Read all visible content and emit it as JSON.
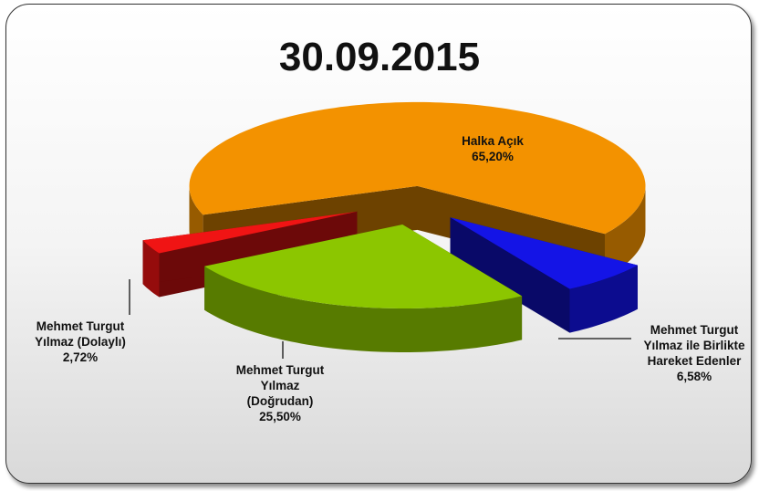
{
  "chart_data": {
    "type": "pie",
    "title": "30.09.2015",
    "categories": [
      "Halka Açık",
      "Mehmet Turgut Yılmaz ile Birlikte Hareket Edenler",
      "Mehmet Turgut Yılmaz (Doğrudan)",
      "Mehmet Turgut Yılmaz (Dolaylı)"
    ],
    "values": [
      65.2,
      6.58,
      25.5,
      2.72
    ],
    "value_labels": [
      "65,20%",
      "6,58%",
      "25,50%",
      "2,72%"
    ],
    "colors": [
      "#f39200",
      "#1414e6",
      "#8cc600",
      "#f01414"
    ]
  }
}
